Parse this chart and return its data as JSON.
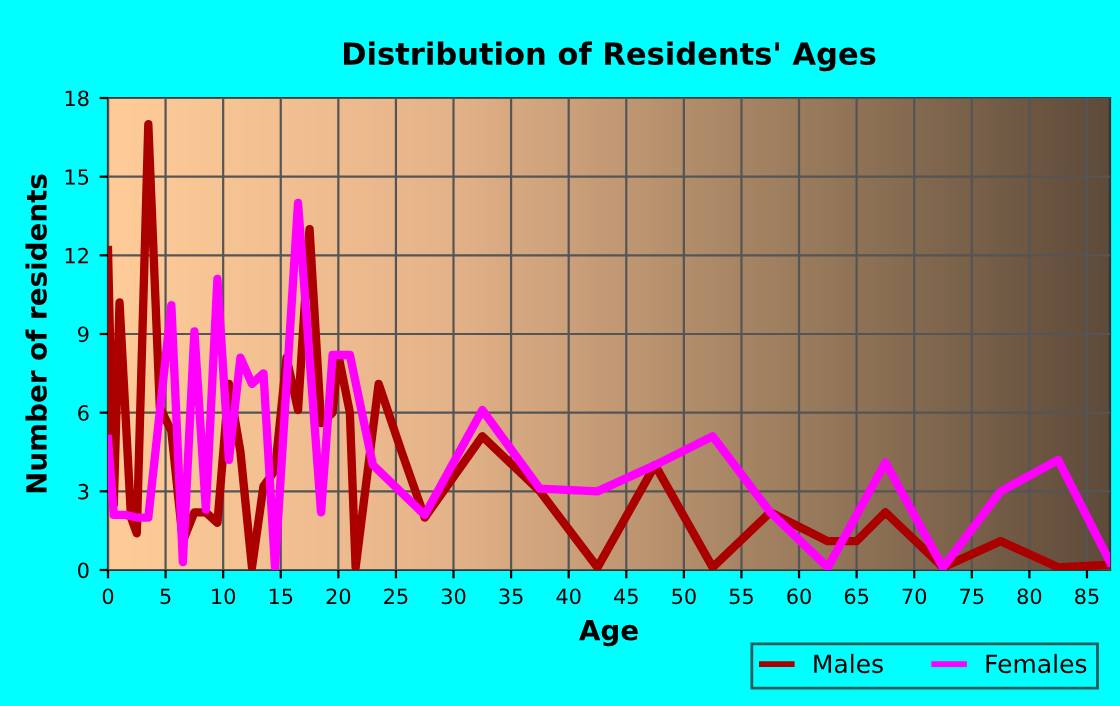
{
  "chart_data": {
    "type": "line",
    "title": "Distribution of Residents' Ages",
    "xlabel": "Age",
    "ylabel": "Number of residents",
    "xlim": [
      0,
      87
    ],
    "xticks": [
      0,
      5,
      10,
      15,
      20,
      25,
      30,
      35,
      40,
      45,
      50,
      55,
      60,
      65,
      70,
      75,
      80,
      85
    ],
    "ylim": [
      0,
      18
    ],
    "yticks": [
      0,
      3,
      6,
      9,
      12,
      15,
      18
    ],
    "grid": true,
    "legend": "bottom right",
    "marker": "none",
    "line_style": "solid",
    "series": [
      {
        "name": "Males",
        "color": "#aa0000",
        "x": [
          0,
          0.5,
          1,
          2,
          2.5,
          3.5,
          4.5,
          5.5,
          6.5,
          7.5,
          8.5,
          9.5,
          10.5,
          11.5,
          12.5,
          13.5,
          14.5,
          15.5,
          16.5,
          17.5,
          18.5,
          19.5,
          20,
          21,
          21.5,
          23.5,
          25.5,
          27.5,
          32.5,
          37.5,
          42.5,
          47.5,
          52.5,
          57.5,
          62.5,
          65,
          67.5,
          72.5,
          77.5,
          82.5,
          87
        ],
        "values": [
          12.2,
          2.5,
          10.2,
          2,
          1.4,
          17,
          6.2,
          5.3,
          1.1,
          2.2,
          2.2,
          1.8,
          7.1,
          4.5,
          0.1,
          3.2,
          3.8,
          8.1,
          6.1,
          13,
          5.6,
          6,
          8.2,
          6,
          0.1,
          7.1,
          4.5,
          2,
          5.1,
          3,
          0.1,
          4,
          0.1,
          2.2,
          1.1,
          1.1,
          2.2,
          0.1,
          1.1,
          0.1,
          0.2
        ]
      },
      {
        "name": "Females",
        "color": "#ff00ff",
        "x": [
          0,
          0.5,
          1.5,
          2.5,
          3.5,
          5.5,
          6.5,
          7.5,
          8.5,
          9.5,
          10.5,
          11.5,
          12.5,
          13.5,
          14.5,
          16.5,
          18.5,
          19.5,
          21,
          23,
          27.5,
          32.5,
          37.5,
          42.5,
          47.5,
          52.5,
          57.5,
          62.5,
          67.5,
          72.5,
          77.5,
          82.5,
          87
        ],
        "values": [
          5,
          2.1,
          2.1,
          2,
          2,
          10.1,
          0.3,
          9.1,
          2.3,
          11.1,
          4.2,
          8.1,
          7.1,
          7.5,
          0.1,
          14,
          2.2,
          8.2,
          8.2,
          4,
          2.1,
          6.1,
          3.1,
          3,
          4,
          5.1,
          2.2,
          0.1,
          4.1,
          0.1,
          3,
          4.2,
          0.3
        ]
      }
    ]
  }
}
